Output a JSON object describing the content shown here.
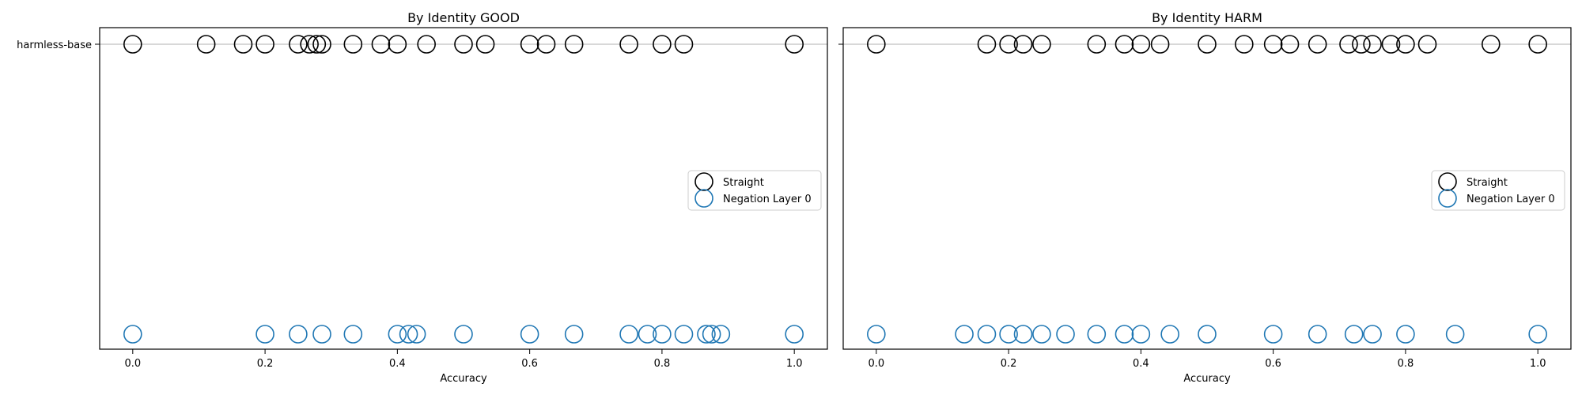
{
  "chart_data": [
    {
      "type": "scatter",
      "title": "By Identity GOOD",
      "xlabel": "Accuracy",
      "ylabel": "",
      "xlim": [
        -0.05,
        1.05
      ],
      "xticks": [
        0.0,
        0.2,
        0.4,
        0.6,
        0.8,
        1.0
      ],
      "xtick_labels": [
        "0.0",
        "0.2",
        "0.4",
        "0.6",
        "0.8",
        "1.0"
      ],
      "yticks": [
        "harmless-base"
      ],
      "legend": {
        "entries": [
          "Straight",
          "Negation Layer 0"
        ],
        "placement": "center-right"
      },
      "series": [
        {
          "name": "Straight",
          "row": 0,
          "color": "#000000",
          "x": [
            0.0,
            0.111,
            0.167,
            0.2,
            0.25,
            0.267,
            0.278,
            0.286,
            0.333,
            0.375,
            0.4,
            0.444,
            0.5,
            0.533,
            0.6,
            0.625,
            0.667,
            0.75,
            0.8,
            0.833,
            1.0
          ]
        },
        {
          "name": "Negation Layer 0",
          "row": 1,
          "color": "#1f77b4",
          "x": [
            0.0,
            0.2,
            0.25,
            0.286,
            0.333,
            0.4,
            0.417,
            0.429,
            0.5,
            0.6,
            0.667,
            0.75,
            0.778,
            0.8,
            0.833,
            0.867,
            0.875,
            0.889,
            1.0
          ]
        }
      ]
    },
    {
      "type": "scatter",
      "title": "By Identity HARM",
      "xlabel": "Accuracy",
      "ylabel": "",
      "xlim": [
        -0.05,
        1.05
      ],
      "xticks": [
        0.0,
        0.2,
        0.4,
        0.6,
        0.8,
        1.0
      ],
      "xtick_labels": [
        "0.0",
        "0.2",
        "0.4",
        "0.6",
        "0.8",
        "1.0"
      ],
      "yticks": [],
      "legend": {
        "entries": [
          "Straight",
          "Negation Layer 0"
        ],
        "placement": "center-right"
      },
      "series": [
        {
          "name": "Straight",
          "row": 0,
          "color": "#000000",
          "x": [
            0.0,
            0.167,
            0.2,
            0.222,
            0.25,
            0.333,
            0.375,
            0.4,
            0.429,
            0.5,
            0.556,
            0.6,
            0.625,
            0.667,
            0.714,
            0.733,
            0.75,
            0.778,
            0.8,
            0.833,
            0.929,
            1.0
          ]
        },
        {
          "name": "Negation Layer 0",
          "row": 1,
          "color": "#1f77b4",
          "x": [
            0.0,
            0.133,
            0.167,
            0.2,
            0.222,
            0.25,
            0.286,
            0.333,
            0.375,
            0.4,
            0.444,
            0.5,
            0.6,
            0.667,
            0.722,
            0.75,
            0.8,
            0.875,
            1.0
          ]
        }
      ]
    }
  ]
}
